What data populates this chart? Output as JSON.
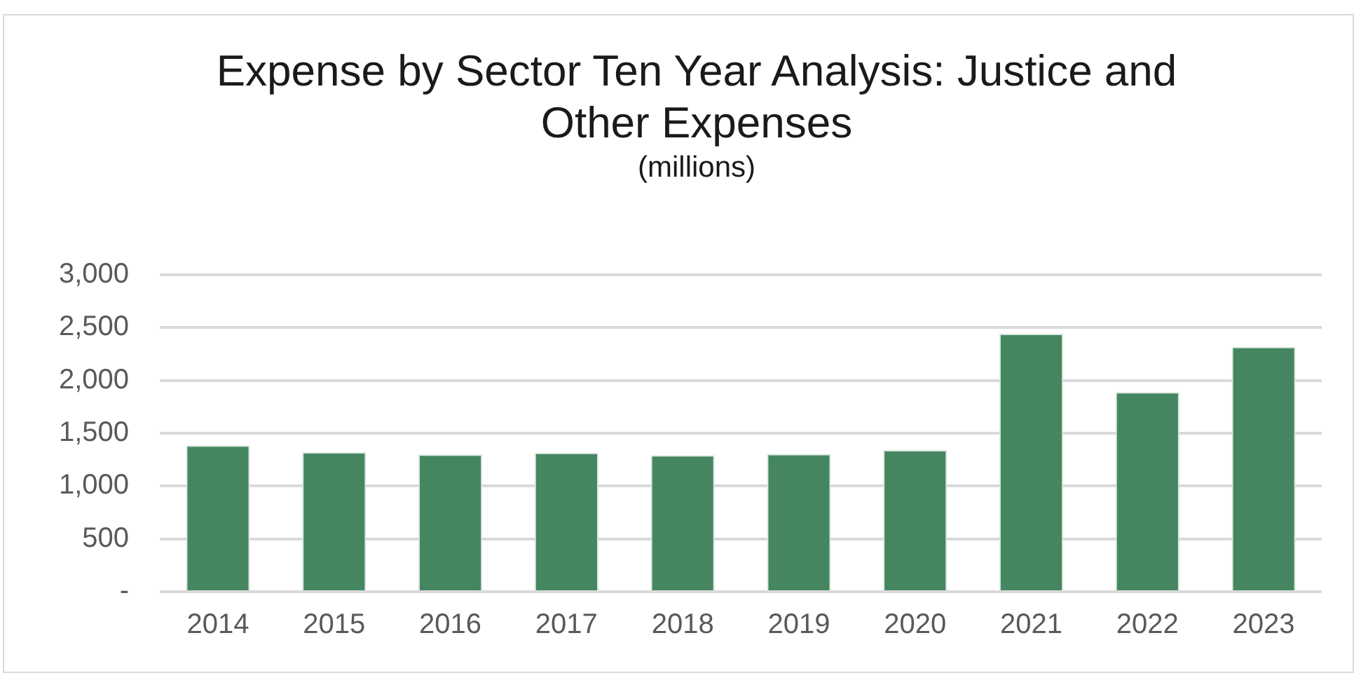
{
  "chart_data": {
    "type": "bar",
    "title": "Expense by Sector Ten Year Analysis: Justice and Other Expenses",
    "subtitle": "(millions)",
    "categories": [
      "2014",
      "2015",
      "2016",
      "2017",
      "2018",
      "2019",
      "2020",
      "2021",
      "2022",
      "2023"
    ],
    "values": [
      1385,
      1320,
      1300,
      1316,
      1292,
      1304,
      1340,
      2443,
      1890,
      2318
    ],
    "color": "#458660",
    "ylim": [
      0,
      3000
    ],
    "yticks": [
      {
        "value": 0,
        "label": "-"
      },
      500,
      {
        "value": 1000,
        "label": "1,000"
      },
      {
        "value": 1500,
        "label": "1,500"
      },
      {
        "value": 2000,
        "label": "2,000"
      },
      {
        "value": 2500,
        "label": "2,500"
      },
      {
        "value": 3000,
        "label": "3,000"
      }
    ],
    "grid": "y",
    "legend": false
  }
}
